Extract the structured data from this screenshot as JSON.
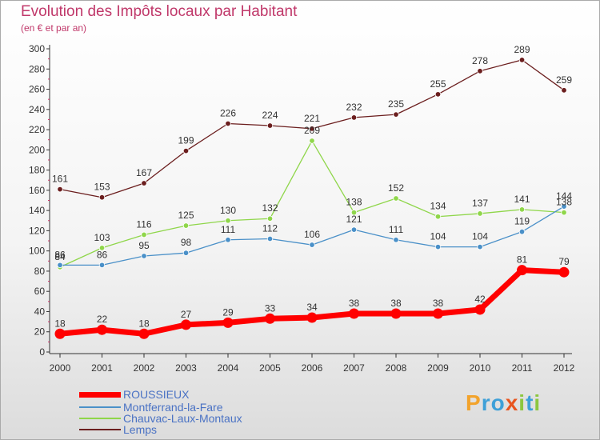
{
  "chart_data": {
    "type": "line",
    "title": "Evolution des Impôts locaux par Habitant",
    "subtitle": "(en € et par an)",
    "categories": [
      "2000",
      "2001",
      "2002",
      "2003",
      "2004",
      "2005",
      "2006",
      "2007",
      "2008",
      "2009",
      "2010",
      "2011",
      "2012"
    ],
    "yticks": [
      0,
      20,
      40,
      60,
      80,
      100,
      120,
      140,
      160,
      180,
      200,
      220,
      240,
      260,
      280,
      300
    ],
    "ylim": [
      0,
      300
    ],
    "grid": false,
    "legend_position": "bottom-left",
    "series": [
      {
        "name": "ROUSSIEUX",
        "color": "#ff0000",
        "values": [
          18,
          22,
          18,
          27,
          29,
          33,
          34,
          38,
          38,
          38,
          42,
          81,
          79
        ]
      },
      {
        "name": "Montferrand-la-Fare",
        "color": "#4a90c8",
        "values": [
          86,
          86,
          95,
          98,
          111,
          112,
          106,
          121,
          111,
          104,
          104,
          119,
          144
        ]
      },
      {
        "name": "Chauvac-Laux-Montaux",
        "color": "#8fd64a",
        "values": [
          84,
          103,
          116,
          125,
          130,
          132,
          209,
          138,
          152,
          134,
          137,
          141,
          138
        ]
      },
      {
        "name": "Lemps",
        "color": "#6b1e1e",
        "values": [
          161,
          153,
          167,
          199,
          226,
          224,
          221,
          232,
          235,
          255,
          278,
          289,
          259
        ]
      }
    ]
  },
  "logo": {
    "letters": [
      "P",
      "r",
      "o",
      "x",
      "i",
      "t",
      "i"
    ],
    "colors": [
      "#f2a32c",
      "#3ea0d8",
      "#3ea0d8",
      "#e8551f",
      "#8cc63f",
      "#3ea0d8",
      "#8cc63f"
    ]
  }
}
